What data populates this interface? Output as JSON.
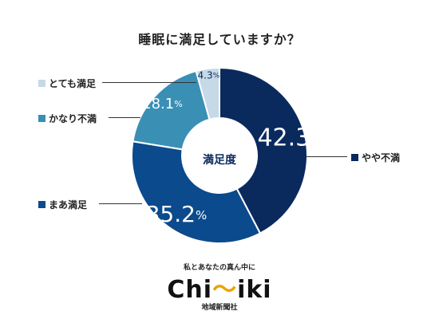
{
  "chart_data": {
    "type": "pie",
    "title": "睡眠に満足していますか？",
    "center_label": "満足度",
    "slices": [
      {
        "label": "やや不満",
        "value": 42.3,
        "display": "42.3",
        "color": "#0a2a5e"
      },
      {
        "label": "まあ満足",
        "value": 35.2,
        "display": "35.2",
        "color": "#0b4a8c"
      },
      {
        "label": "かなり不満",
        "value": 18.1,
        "display": "18.1",
        "color": "#3a8fb5"
      },
      {
        "label": "とても満足",
        "value": 4.3,
        "display": "4.3",
        "color": "#c5d9e6"
      }
    ],
    "unit": "%"
  },
  "logo": {
    "tagline": "私とあなたの真ん中に",
    "word_prefix": "Chi",
    "word_accent": "～",
    "word_suffix": "iki",
    "subtitle": "地域新聞社"
  }
}
